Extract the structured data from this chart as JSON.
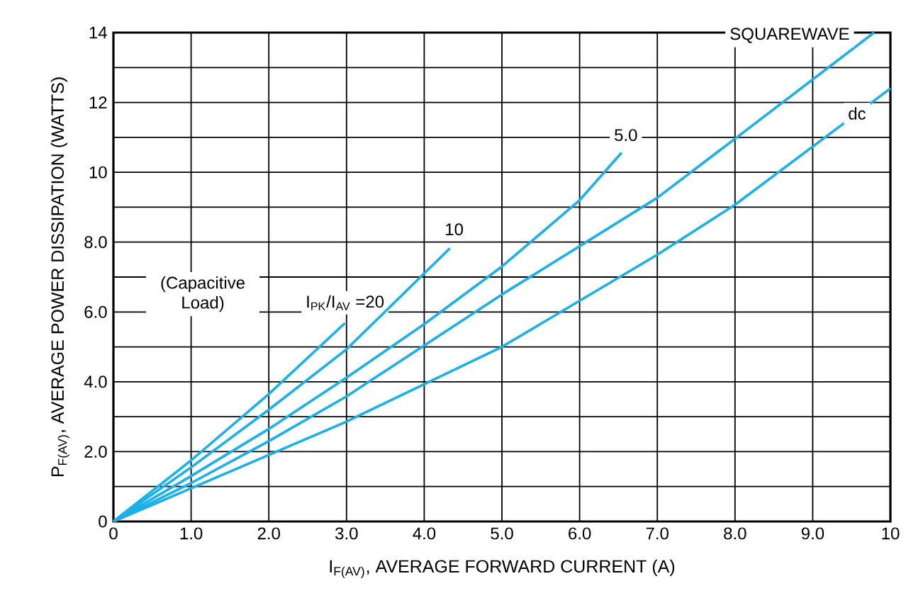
{
  "chart_data": {
    "type": "line",
    "xlabel": "I$_{F(AV)}$, AVERAGE FORWARD CURRENT (A)",
    "ylabel": "P$_{F(AV)}$, AVERAGE POWER DISSIPATION (WATTS)",
    "xlim": [
      0,
      10
    ],
    "ylim": [
      0,
      14
    ],
    "xticks": [
      0,
      {
        "value": 1,
        "label": "1.0"
      },
      {
        "value": 2,
        "label": "2.0"
      },
      {
        "value": 3,
        "label": "3.0"
      },
      {
        "value": 4,
        "label": "4.0"
      },
      {
        "value": 5,
        "label": "5.0"
      },
      {
        "value": 6,
        "label": "6.0"
      },
      {
        "value": 7,
        "label": "7.0"
      },
      {
        "value": 8,
        "label": "8.0"
      },
      {
        "value": 9,
        "label": "9.0"
      },
      10
    ],
    "yticks": [
      0,
      {
        "value": 1,
        "label": null
      },
      {
        "value": 2,
        "label": "2.0"
      },
      {
        "value": 3,
        "label": null
      },
      {
        "value": 4,
        "label": "4.0"
      },
      {
        "value": 5,
        "label": null
      },
      {
        "value": 6,
        "label": "6.0"
      },
      {
        "value": 7,
        "label": null
      },
      {
        "value": 8,
        "label": "8.0"
      },
      {
        "value": 9,
        "label": null
      },
      10,
      {
        "value": 11,
        "label": null
      },
      12,
      {
        "value": 13,
        "label": null
      },
      14
    ],
    "grid": true,
    "marker": "none",
    "line_style": "solid",
    "series": [
      {
        "name": "I$_{PK}$/I$_{AV}$ =20",
        "color": "#1ab0e8",
        "x": [
          0,
          1,
          2,
          2.98
        ],
        "values": [
          0,
          1.75,
          3.65,
          5.68
        ]
      },
      {
        "name": "10",
        "color": "#1ab0e8",
        "x": [
          0,
          1,
          2,
          3,
          4.33
        ],
        "values": [
          0,
          1.55,
          3.2,
          4.93,
          7.82
        ]
      },
      {
        "name": "5.0",
        "color": "#1ab0e8",
        "x": [
          0,
          1,
          2,
          3,
          4,
          5,
          6,
          6.54
        ],
        "values": [
          0,
          1.3,
          2.65,
          4.12,
          5.65,
          7.3,
          9.2,
          10.56
        ]
      },
      {
        "name": "SQUAREWAVE",
        "color": "#1ab0e8",
        "x": [
          0,
          1,
          2,
          3,
          5,
          7,
          8,
          9.79
        ],
        "values": [
          0,
          1.1,
          2.3,
          3.58,
          6.5,
          9.27,
          10.96,
          14.0
        ]
      },
      {
        "name": "dc",
        "color": "#1ab0e8",
        "x": [
          0,
          1,
          3,
          5,
          7,
          8,
          10
        ],
        "values": [
          0,
          0.95,
          2.86,
          5.0,
          7.64,
          9.07,
          12.4
        ]
      }
    ],
    "annotations": [
      "(Capacitive Load)"
    ]
  }
}
